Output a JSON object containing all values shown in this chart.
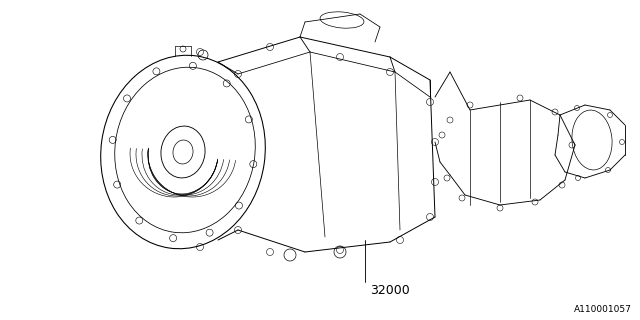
{
  "background_color": "#ffffff",
  "border_color": "#000000",
  "part_number": "32000",
  "ref_number": "A110001057",
  "line_color": "#000000",
  "line_width": 0.7,
  "fig_width": 6.4,
  "fig_height": 3.2,
  "dpi": 100
}
